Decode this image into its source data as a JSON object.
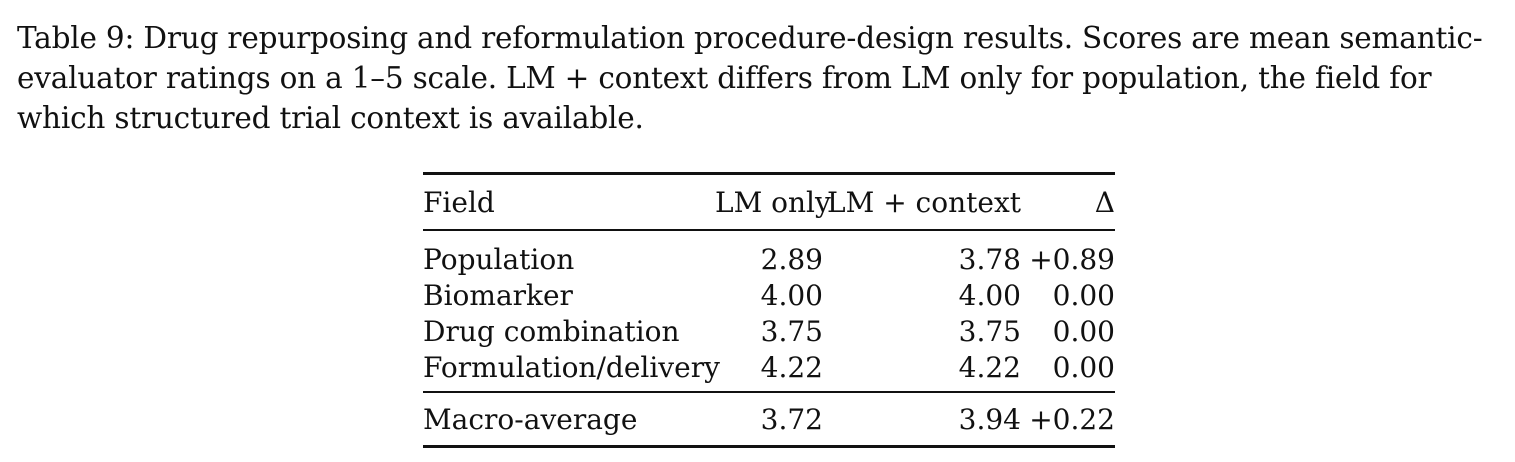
{
  "caption": "Table 9: Drug repurposing and reformulation procedure-design results. Scores are mean semantic-evaluator ratings on a 1–5 scale. LM + context differs from LM only for population, the field for which structured trial context is available.",
  "table": {
    "headers": [
      "Field",
      "LM only",
      "LM + context",
      "Δ"
    ],
    "rows": [
      [
        "Population",
        "2.89",
        "3.78",
        "+0.89"
      ],
      [
        "Biomarker",
        "4.00",
        "4.00",
        "0.00"
      ],
      [
        "Drug combination",
        "3.75",
        "3.75",
        "0.00"
      ],
      [
        "Formulation/delivery",
        "4.22",
        "4.22",
        "0.00"
      ]
    ],
    "footer": [
      "Macro-average",
      "3.72",
      "3.94",
      "+0.22"
    ]
  }
}
